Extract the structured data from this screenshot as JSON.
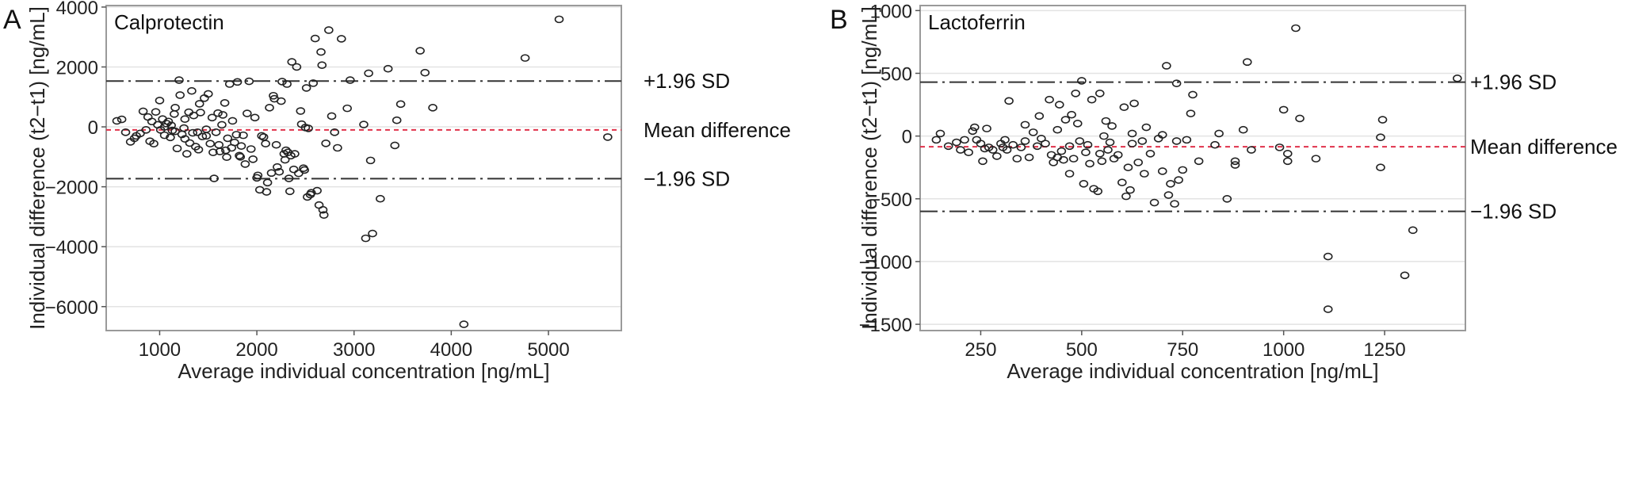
{
  "chart_data": [
    {
      "type": "scatter",
      "panel_label": "A",
      "title": "Calprotectin",
      "xlabel": "Average individual concentration [ng/mL]",
      "ylabel": "Individual difference (t2−t1) [ng/mL]",
      "xlim": [
        450,
        5750
      ],
      "ylim": [
        -6800,
        4050
      ],
      "xticks": [
        1000,
        2000,
        3000,
        4000,
        5000
      ],
      "xtick_labels": [
        "1000",
        "2000",
        "3000",
        "4000",
        "5000"
      ],
      "yticks": [
        -6000,
        -4000,
        -2000,
        0,
        2000,
        4000
      ],
      "ytick_labels": [
        "−6000",
        "−4000",
        "−2000",
        "0",
        "2000",
        "4000"
      ],
      "grid": true,
      "reference_lines": [
        {
          "label": "+1.96 SD",
          "y": 1530,
          "style": "dashdot"
        },
        {
          "label": "Mean difference",
          "y": -100,
          "style": "dashed-red"
        },
        {
          "label": "−1.96 SD",
          "y": -1730,
          "style": "dashdot"
        }
      ],
      "points": [
        [
          560,
          200
        ],
        [
          610,
          250
        ],
        [
          650,
          -180
        ],
        [
          700,
          -500
        ],
        [
          740,
          -380
        ],
        [
          760,
          -300
        ],
        [
          800,
          -220
        ],
        [
          830,
          520
        ],
        [
          860,
          -100
        ],
        [
          880,
          330
        ],
        [
          900,
          -480
        ],
        [
          920,
          180
        ],
        [
          940,
          -560
        ],
        [
          960,
          500
        ],
        [
          980,
          70
        ],
        [
          1000,
          880
        ],
        [
          1010,
          -100
        ],
        [
          1030,
          260
        ],
        [
          1050,
          -280
        ],
        [
          1070,
          110
        ],
        [
          1090,
          180
        ],
        [
          1110,
          -350
        ],
        [
          1130,
          -120
        ],
        [
          1150,
          430
        ],
        [
          1160,
          640
        ],
        [
          1180,
          -720
        ],
        [
          1200,
          1560
        ],
        [
          1210,
          1060
        ],
        [
          1230,
          -250
        ],
        [
          1250,
          -40
        ],
        [
          1260,
          260
        ],
        [
          1280,
          -900
        ],
        [
          1300,
          490
        ],
        [
          1310,
          -540
        ],
        [
          1330,
          1200
        ],
        [
          1350,
          380
        ],
        [
          1370,
          -660
        ],
        [
          1390,
          -180
        ],
        [
          1410,
          770
        ],
        [
          1420,
          480
        ],
        [
          1440,
          -320
        ],
        [
          1460,
          960
        ],
        [
          1480,
          -80
        ],
        [
          1500,
          1100
        ],
        [
          1520,
          -560
        ],
        [
          1540,
          310
        ],
        [
          1560,
          -1720
        ],
        [
          1580,
          -180
        ],
        [
          1600,
          460
        ],
        [
          1620,
          -820
        ],
        [
          1640,
          70
        ],
        [
          1650,
          400
        ],
        [
          1670,
          800
        ],
        [
          1690,
          -1010
        ],
        [
          1700,
          -380
        ],
        [
          1720,
          1430
        ],
        [
          1740,
          -700
        ],
        [
          1750,
          200
        ],
        [
          1770,
          -520
        ],
        [
          1790,
          -260
        ],
        [
          1800,
          1500
        ],
        [
          1820,
          -960
        ],
        [
          1840,
          -640
        ],
        [
          1860,
          -280
        ],
        [
          1880,
          -1240
        ],
        [
          1900,
          450
        ],
        [
          1920,
          1520
        ],
        [
          1940,
          -740
        ],
        [
          1960,
          -1080
        ],
        [
          1980,
          310
        ],
        [
          2000,
          -1700
        ],
        [
          2010,
          -1620
        ],
        [
          2030,
          -2100
        ],
        [
          2050,
          -300
        ],
        [
          2070,
          -340
        ],
        [
          2090,
          -560
        ],
        [
          2100,
          -2170
        ],
        [
          2110,
          -1860
        ],
        [
          2130,
          640
        ],
        [
          2150,
          -1540
        ],
        [
          2170,
          1040
        ],
        [
          2180,
          940
        ],
        [
          2200,
          -600
        ],
        [
          2210,
          -1340
        ],
        [
          2230,
          -1500
        ],
        [
          2250,
          860
        ],
        [
          2260,
          1510
        ],
        [
          2280,
          -900
        ],
        [
          2290,
          -1100
        ],
        [
          2300,
          -780
        ],
        [
          2310,
          1430
        ],
        [
          2320,
          -850
        ],
        [
          2330,
          -1720
        ],
        [
          2340,
          -2150
        ],
        [
          2350,
          -960
        ],
        [
          2360,
          2170
        ],
        [
          2380,
          -1420
        ],
        [
          2390,
          -900
        ],
        [
          2410,
          2000
        ],
        [
          2430,
          -1550
        ],
        [
          2450,
          530
        ],
        [
          2460,
          90
        ],
        [
          2480,
          -1380
        ],
        [
          2490,
          -1440
        ],
        [
          2500,
          -20
        ],
        [
          2510,
          1300
        ],
        [
          2520,
          -2340
        ],
        [
          2530,
          -50
        ],
        [
          2550,
          -2260
        ],
        [
          2560,
          -2200
        ],
        [
          2580,
          1460
        ],
        [
          2600,
          2950
        ],
        [
          2620,
          -2130
        ],
        [
          2640,
          -2610
        ],
        [
          2660,
          2500
        ],
        [
          2670,
          2060
        ],
        [
          2680,
          -2770
        ],
        [
          2690,
          -2940
        ],
        [
          2710,
          -550
        ],
        [
          2740,
          3230
        ],
        [
          2770,
          360
        ],
        [
          2800,
          -180
        ],
        [
          2830,
          -700
        ],
        [
          2870,
          2940
        ],
        [
          2930,
          620
        ],
        [
          2960,
          1560
        ],
        [
          3100,
          80
        ],
        [
          3120,
          -3720
        ],
        [
          3150,
          1790
        ],
        [
          3170,
          -1120
        ],
        [
          3190,
          -3560
        ],
        [
          3270,
          -2400
        ],
        [
          3350,
          1940
        ],
        [
          3420,
          -620
        ],
        [
          3440,
          220
        ],
        [
          3480,
          760
        ],
        [
          3680,
          2540
        ],
        [
          3730,
          1810
        ],
        [
          3810,
          640
        ],
        [
          4130,
          -6590
        ],
        [
          4760,
          2300
        ],
        [
          5110,
          3590
        ],
        [
          5610,
          -340
        ],
        [
          1050,
          0
        ],
        [
          1120,
          50
        ],
        [
          1340,
          -200
        ],
        [
          1480,
          -300
        ],
        [
          1550,
          -850
        ],
        [
          1610,
          -600
        ],
        [
          1680,
          -780
        ],
        [
          1830,
          -1000
        ],
        [
          1160,
          -150
        ],
        [
          1260,
          -400
        ],
        [
          1400,
          -760
        ]
      ]
    },
    {
      "type": "scatter",
      "panel_label": "B",
      "title": "Lactoferrin",
      "xlabel": "Average individual concentration [ng/mL]",
      "ylabel": "Individual difference (t2−t1) [ng/mL]",
      "xlim": [
        100,
        1450
      ],
      "ylim": [
        -1550,
        1040
      ],
      "xticks": [
        250,
        500,
        750,
        1000,
        1250
      ],
      "xtick_labels": [
        "250",
        "500",
        "750",
        "1000",
        "1250"
      ],
      "yticks": [
        -1500,
        -1000,
        -500,
        0,
        500,
        1000
      ],
      "ytick_labels": [
        "−1500",
        "−1000",
        "−500",
        "0",
        "500",
        "1000"
      ],
      "grid": true,
      "reference_lines": [
        {
          "label": "+1.96 SD",
          "y": 430,
          "style": "dashdot"
        },
        {
          "label": "Mean difference",
          "y": -85,
          "style": "dashed-red"
        },
        {
          "label": "−1.96 SD",
          "y": -600,
          "style": "dashdot"
        }
      ],
      "points": [
        [
          140,
          -30
        ],
        [
          150,
          20
        ],
        [
          170,
          -80
        ],
        [
          190,
          -50
        ],
        [
          200,
          -110
        ],
        [
          210,
          -30
        ],
        [
          220,
          -130
        ],
        [
          230,
          40
        ],
        [
          235,
          70
        ],
        [
          240,
          -30
        ],
        [
          250,
          -60
        ],
        [
          255,
          -200
        ],
        [
          260,
          -100
        ],
        [
          270,
          -90
        ],
        [
          280,
          -110
        ],
        [
          290,
          -160
        ],
        [
          300,
          -60
        ],
        [
          310,
          -30
        ],
        [
          315,
          -110
        ],
        [
          320,
          280
        ],
        [
          330,
          -70
        ],
        [
          340,
          -180
        ],
        [
          350,
          -90
        ],
        [
          360,
          90
        ],
        [
          370,
          -170
        ],
        [
          380,
          30
        ],
        [
          390,
          -80
        ],
        [
          395,
          160
        ],
        [
          400,
          -20
        ],
        [
          410,
          -60
        ],
        [
          420,
          290
        ],
        [
          430,
          -210
        ],
        [
          440,
          50
        ],
        [
          445,
          250
        ],
        [
          450,
          -120
        ],
        [
          455,
          -190
        ],
        [
          460,
          130
        ],
        [
          470,
          -80
        ],
        [
          475,
          170
        ],
        [
          480,
          -180
        ],
        [
          485,
          340
        ],
        [
          490,
          100
        ],
        [
          495,
          -40
        ],
        [
          500,
          440
        ],
        [
          505,
          -380
        ],
        [
          510,
          -130
        ],
        [
          515,
          -70
        ],
        [
          520,
          -220
        ],
        [
          525,
          290
        ],
        [
          530,
          -420
        ],
        [
          540,
          -440
        ],
        [
          545,
          340
        ],
        [
          550,
          -200
        ],
        [
          555,
          0
        ],
        [
          560,
          120
        ],
        [
          570,
          -50
        ],
        [
          575,
          80
        ],
        [
          580,
          -180
        ],
        [
          590,
          -150
        ],
        [
          600,
          -370
        ],
        [
          605,
          230
        ],
        [
          610,
          -480
        ],
        [
          615,
          -250
        ],
        [
          620,
          -430
        ],
        [
          625,
          20
        ],
        [
          630,
          260
        ],
        [
          640,
          -210
        ],
        [
          650,
          -40
        ],
        [
          655,
          -300
        ],
        [
          660,
          70
        ],
        [
          670,
          -140
        ],
        [
          680,
          -530
        ],
        [
          690,
          -20
        ],
        [
          700,
          -280
        ],
        [
          710,
          560
        ],
        [
          715,
          -470
        ],
        [
          720,
          -380
        ],
        [
          730,
          -540
        ],
        [
          735,
          420
        ],
        [
          740,
          -350
        ],
        [
          750,
          -270
        ],
        [
          760,
          -30
        ],
        [
          770,
          180
        ],
        [
          775,
          330
        ],
        [
          790,
          -200
        ],
        [
          830,
          -70
        ],
        [
          840,
          20
        ],
        [
          860,
          -500
        ],
        [
          880,
          -200
        ],
        [
          900,
          50
        ],
        [
          910,
          590
        ],
        [
          920,
          -110
        ],
        [
          990,
          -90
        ],
        [
          1000,
          210
        ],
        [
          1010,
          -200
        ],
        [
          1030,
          860
        ],
        [
          1040,
          140
        ],
        [
          1080,
          -180
        ],
        [
          1110,
          -960
        ],
        [
          1110,
          -1380
        ],
        [
          1240,
          -250
        ],
        [
          1240,
          -10
        ],
        [
          1245,
          130
        ],
        [
          1300,
          -1110
        ],
        [
          1320,
          -750
        ],
        [
          1430,
          460
        ],
        [
          1010,
          -140
        ],
        [
          880,
          -230
        ],
        [
          545,
          -140
        ],
        [
          470,
          -300
        ],
        [
          360,
          -40
        ],
        [
          265,
          60
        ],
        [
          305,
          -90
        ],
        [
          425,
          -150
        ],
        [
          565,
          -110
        ],
        [
          625,
          -60
        ],
        [
          700,
          10
        ],
        [
          735,
          -40
        ],
        [
          440,
          -170
        ]
      ]
    }
  ]
}
